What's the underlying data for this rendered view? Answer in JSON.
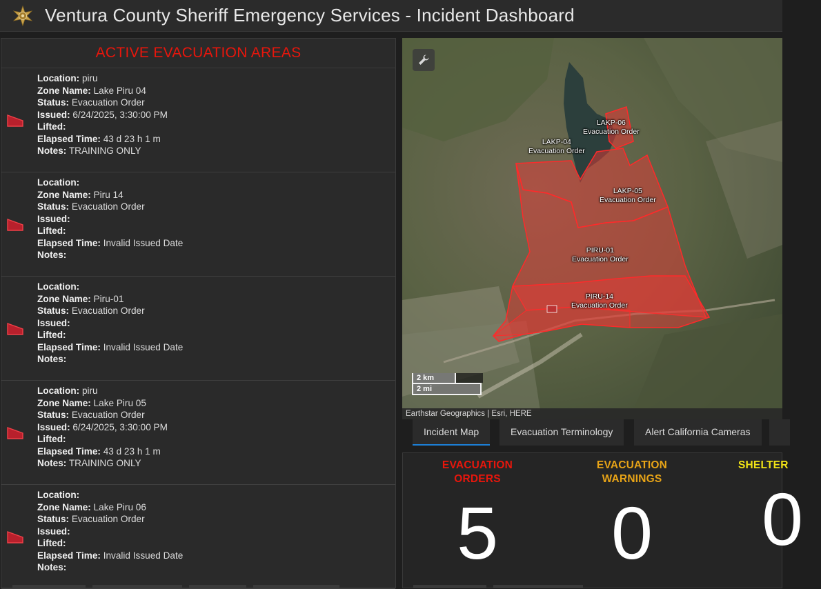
{
  "header": {
    "title": "Ventura County Sheriff Emergency Services - Incident Dashboard"
  },
  "left_panel": {
    "title": "ACTIVE EVACUATION AREAS",
    "field_labels": {
      "location": "Location:",
      "zone_name": "Zone Name:",
      "status": "Status:",
      "issued": "Issued:",
      "lifted": "Lifted:",
      "elapsed": "Elapsed Time:",
      "notes": "Notes:"
    },
    "items": [
      {
        "location": "piru",
        "zone_name": "Lake Piru 04",
        "status": "Evacuation Order",
        "issued": "6/24/2025, 3:30:00 PM",
        "lifted": "",
        "elapsed": "43 d 23 h 1 m",
        "notes": "TRAINING ONLY"
      },
      {
        "location": "",
        "zone_name": "Piru 14",
        "status": "Evacuation Order",
        "issued": "",
        "lifted": "",
        "elapsed": "Invalid Issued Date",
        "notes": ""
      },
      {
        "location": "",
        "zone_name": "Piru-01",
        "status": "Evacuation Order",
        "issued": "",
        "lifted": "",
        "elapsed": "Invalid Issued Date",
        "notes": ""
      },
      {
        "location": "piru",
        "zone_name": "Lake Piru 05",
        "status": "Evacuation Order",
        "issued": "6/24/2025, 3:30:00 PM",
        "lifted": "",
        "elapsed": "43 d 23 h 1 m",
        "notes": "TRAINING ONLY"
      },
      {
        "location": "",
        "zone_name": "Lake Piru 06",
        "status": "Evacuation Order",
        "issued": "",
        "lifted": "",
        "elapsed": "Invalid Issued Date",
        "notes": ""
      }
    ],
    "icon": "evacuation-zone-icon",
    "accent_color": "#e8160c"
  },
  "map": {
    "zones": [
      {
        "code": "LAKP-06",
        "status": "Evacuation Order"
      },
      {
        "code": "LAKP-04",
        "status": "Evacuation Order"
      },
      {
        "code": "LAKP-05",
        "status": "Evacuation Order"
      },
      {
        "code": "PIRU-01",
        "status": "Evacuation Order"
      },
      {
        "code": "PIRU-14",
        "status": "Evacuation Order"
      }
    ],
    "scale_km": "2 km",
    "scale_mi": "2 mi",
    "attribution": "Earthstar Geographics | Esri, HERE",
    "tool_icon": "wrench-icon",
    "zone_color": "#e53935"
  },
  "tabs": [
    {
      "label": "Incident Map",
      "active": true
    },
    {
      "label": "Evacuation Terminology",
      "active": false
    },
    {
      "label": "Alert California Cameras",
      "active": false
    }
  ],
  "stats": [
    {
      "label_line1": "EVACUATION",
      "label_line2": "ORDERS",
      "value": "5",
      "color": "#e8160c"
    },
    {
      "label_line1": "EVACUATION",
      "label_line2": "WARNINGS",
      "value": "0",
      "color": "#e8a417"
    },
    {
      "label_line1": "SHELTER",
      "label_line2": "",
      "value": "0",
      "color": "#f2e416"
    }
  ]
}
